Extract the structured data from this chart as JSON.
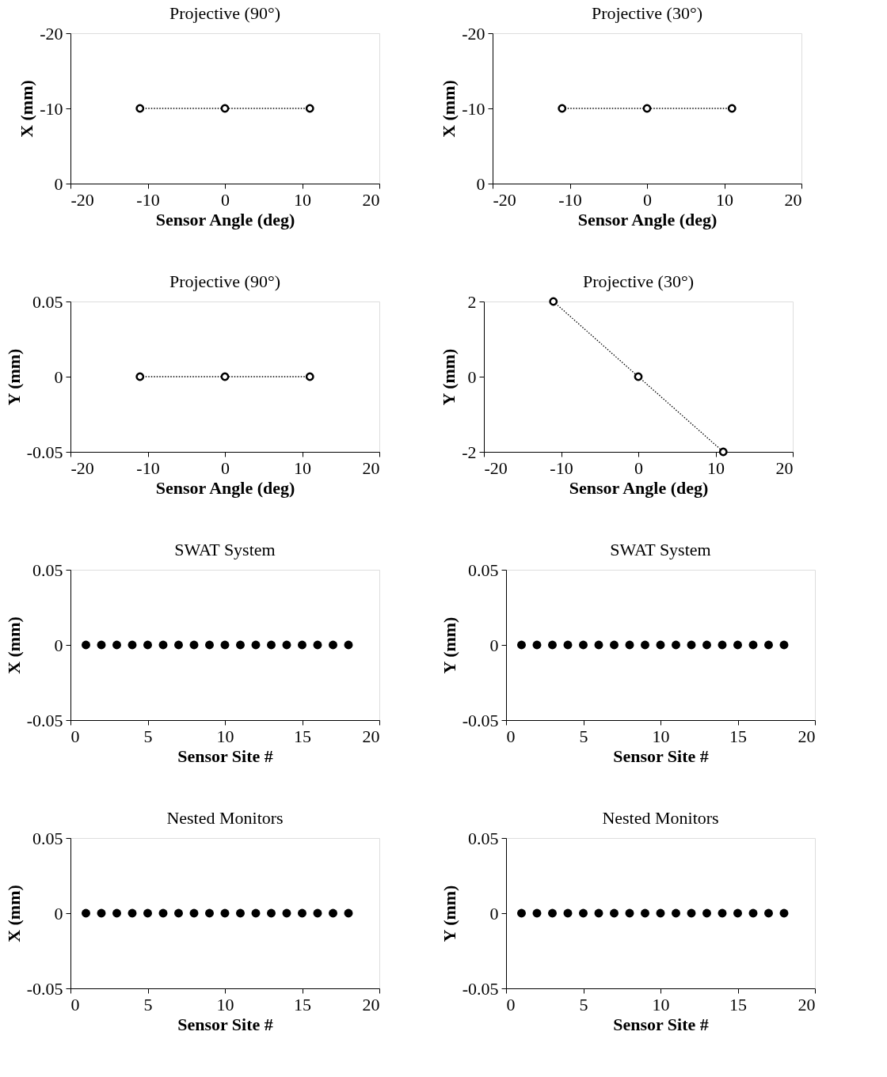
{
  "chart_data": [
    {
      "type": "line",
      "title": "Projective (90°)",
      "xlabel": "Sensor Angle (deg)",
      "ylabel": "X (mm)",
      "x": [
        -11,
        0,
        11
      ],
      "values": [
        -10,
        -10,
        -10
      ],
      "color": "#000000",
      "marker": "circle",
      "line_style": "dotted",
      "xlim": [
        -20,
        20
      ],
      "xticks": [
        -20,
        -10,
        0,
        10,
        20
      ],
      "ylim": [
        0,
        -20
      ],
      "yticks": [
        -20,
        -10,
        0
      ]
    },
    {
      "type": "line",
      "title": "Projective (30°)",
      "xlabel": "Sensor Angle (deg)",
      "ylabel": "X (mm)",
      "x": [
        -11,
        0,
        11
      ],
      "values": [
        -10,
        -10,
        -10
      ],
      "color": "#000000",
      "marker": "circle",
      "line_style": "dotted",
      "xlim": [
        -20,
        20
      ],
      "xticks": [
        -20,
        -10,
        0,
        10,
        20
      ],
      "ylim": [
        0,
        -20
      ],
      "yticks": [
        -20,
        -10,
        0
      ]
    },
    {
      "type": "line",
      "title": "Projective (90°)",
      "xlabel": "Sensor Angle (deg)",
      "ylabel": "Y (mm)",
      "x": [
        -11,
        0,
        11
      ],
      "values": [
        0,
        0,
        0
      ],
      "color": "#000000",
      "marker": "circle",
      "line_style": "dotted",
      "xlim": [
        -20,
        20
      ],
      "xticks": [
        -20,
        -10,
        0,
        10,
        20
      ],
      "ylim": [
        -0.05,
        0.05
      ],
      "yticks": [
        -0.05,
        0,
        0.05
      ]
    },
    {
      "type": "line",
      "title": "Projective (30°)",
      "xlabel": "Sensor Angle (deg)",
      "ylabel": "Y (mm)",
      "x": [
        -11,
        0,
        11
      ],
      "values": [
        2,
        0,
        -2
      ],
      "color": "#000000",
      "marker": "circle",
      "line_style": "dotted",
      "xlim": [
        -20,
        20
      ],
      "xticks": [
        -20,
        -10,
        0,
        10,
        20
      ],
      "ylim": [
        -2,
        2
      ],
      "yticks": [
        -2,
        0,
        2
      ]
    },
    {
      "type": "scatter",
      "title": "SWAT System",
      "xlabel": "Sensor Site #",
      "ylabel": "X (mm)",
      "x": [
        1,
        2,
        3,
        4,
        5,
        6,
        7,
        8,
        9,
        10,
        11,
        12,
        13,
        14,
        15,
        16,
        17,
        18
      ],
      "values": [
        0,
        0,
        0,
        0,
        0,
        0,
        0,
        0,
        0,
        0,
        0,
        0,
        0,
        0,
        0,
        0,
        0,
        0
      ],
      "color": "#000000",
      "marker": "circle",
      "xlim": [
        0,
        20
      ],
      "xticks": [
        0,
        5,
        10,
        15,
        20
      ],
      "ylim": [
        -0.05,
        0.05
      ],
      "yticks": [
        -0.05,
        0,
        0.05
      ]
    },
    {
      "type": "scatter",
      "title": "SWAT System",
      "xlabel": "Sensor Site #",
      "ylabel": "Y (mm)",
      "x": [
        1,
        2,
        3,
        4,
        5,
        6,
        7,
        8,
        9,
        10,
        11,
        12,
        13,
        14,
        15,
        16,
        17,
        18
      ],
      "values": [
        0,
        0,
        0,
        0,
        0,
        0,
        0,
        0,
        0,
        0,
        0,
        0,
        0,
        0,
        0,
        0,
        0,
        0
      ],
      "color": "#000000",
      "marker": "circle",
      "xlim": [
        0,
        20
      ],
      "xticks": [
        0,
        5,
        10,
        15,
        20
      ],
      "ylim": [
        -0.05,
        0.05
      ],
      "yticks": [
        -0.05,
        0,
        0.05
      ]
    },
    {
      "type": "scatter",
      "title": "Nested Monitors",
      "xlabel": "Sensor Site #",
      "ylabel": "X (mm)",
      "x": [
        1,
        2,
        3,
        4,
        5,
        6,
        7,
        8,
        9,
        10,
        11,
        12,
        13,
        14,
        15,
        16,
        17,
        18
      ],
      "values": [
        0,
        0,
        0,
        0,
        0,
        0,
        0,
        0,
        0,
        0,
        0,
        0,
        0,
        0,
        0,
        0,
        0,
        0
      ],
      "color": "#000000",
      "marker": "circle",
      "xlim": [
        0,
        20
      ],
      "xticks": [
        0,
        5,
        10,
        15,
        20
      ],
      "ylim": [
        -0.05,
        0.05
      ],
      "yticks": [
        -0.05,
        0,
        0.05
      ]
    },
    {
      "type": "scatter",
      "title": "Nested Monitors",
      "xlabel": "Sensor Site #",
      "ylabel": "Y (mm)",
      "x": [
        1,
        2,
        3,
        4,
        5,
        6,
        7,
        8,
        9,
        10,
        11,
        12,
        13,
        14,
        15,
        16,
        17,
        18
      ],
      "values": [
        0,
        0,
        0,
        0,
        0,
        0,
        0,
        0,
        0,
        0,
        0,
        0,
        0,
        0,
        0,
        0,
        0,
        0
      ],
      "color": "#000000",
      "marker": "circle",
      "xlim": [
        0,
        20
      ],
      "xticks": [
        0,
        5,
        10,
        15,
        20
      ],
      "ylim": [
        -0.05,
        0.05
      ],
      "yticks": [
        -0.05,
        0,
        0.05
      ]
    }
  ]
}
